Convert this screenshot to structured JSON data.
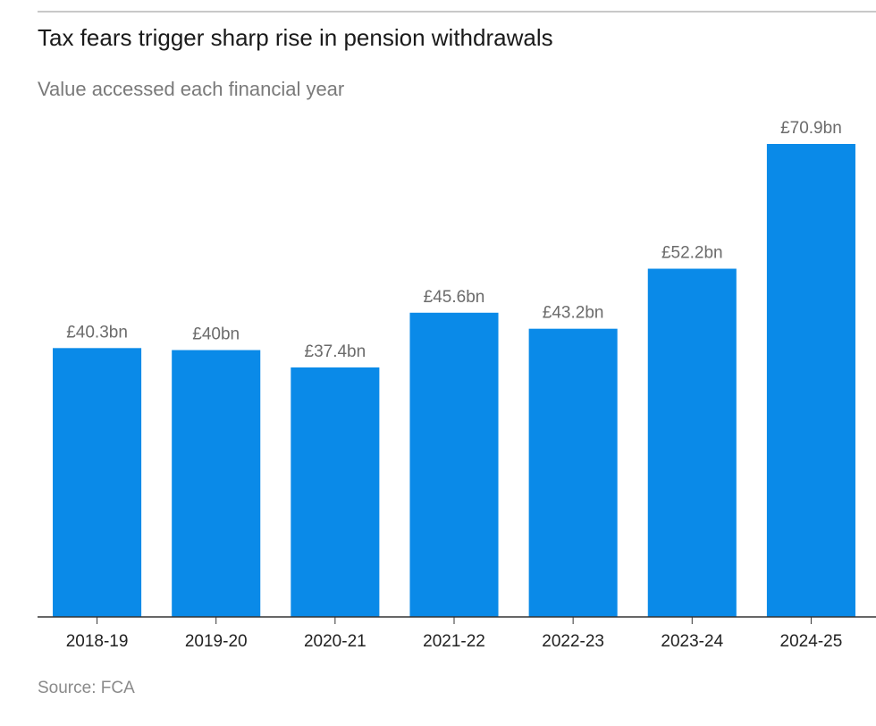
{
  "chart_data": {
    "type": "bar",
    "title": "Tax fears trigger sharp rise in pension withdrawals",
    "subtitle": "Value accessed each financial year",
    "source": "Source: FCA",
    "categories": [
      "2018-19",
      "2019-20",
      "2020-21",
      "2021-22",
      "2022-23",
      "2023-24",
      "2024-25"
    ],
    "values": [
      40.3,
      40,
      37.4,
      45.6,
      43.2,
      52.2,
      70.9
    ],
    "value_labels": [
      "£40.3bn",
      "£40bn",
      "£37.4bn",
      "£45.6bn",
      "£43.2bn",
      "£52.2bn",
      "£70.9bn"
    ],
    "color": "#0a8ae8"
  }
}
